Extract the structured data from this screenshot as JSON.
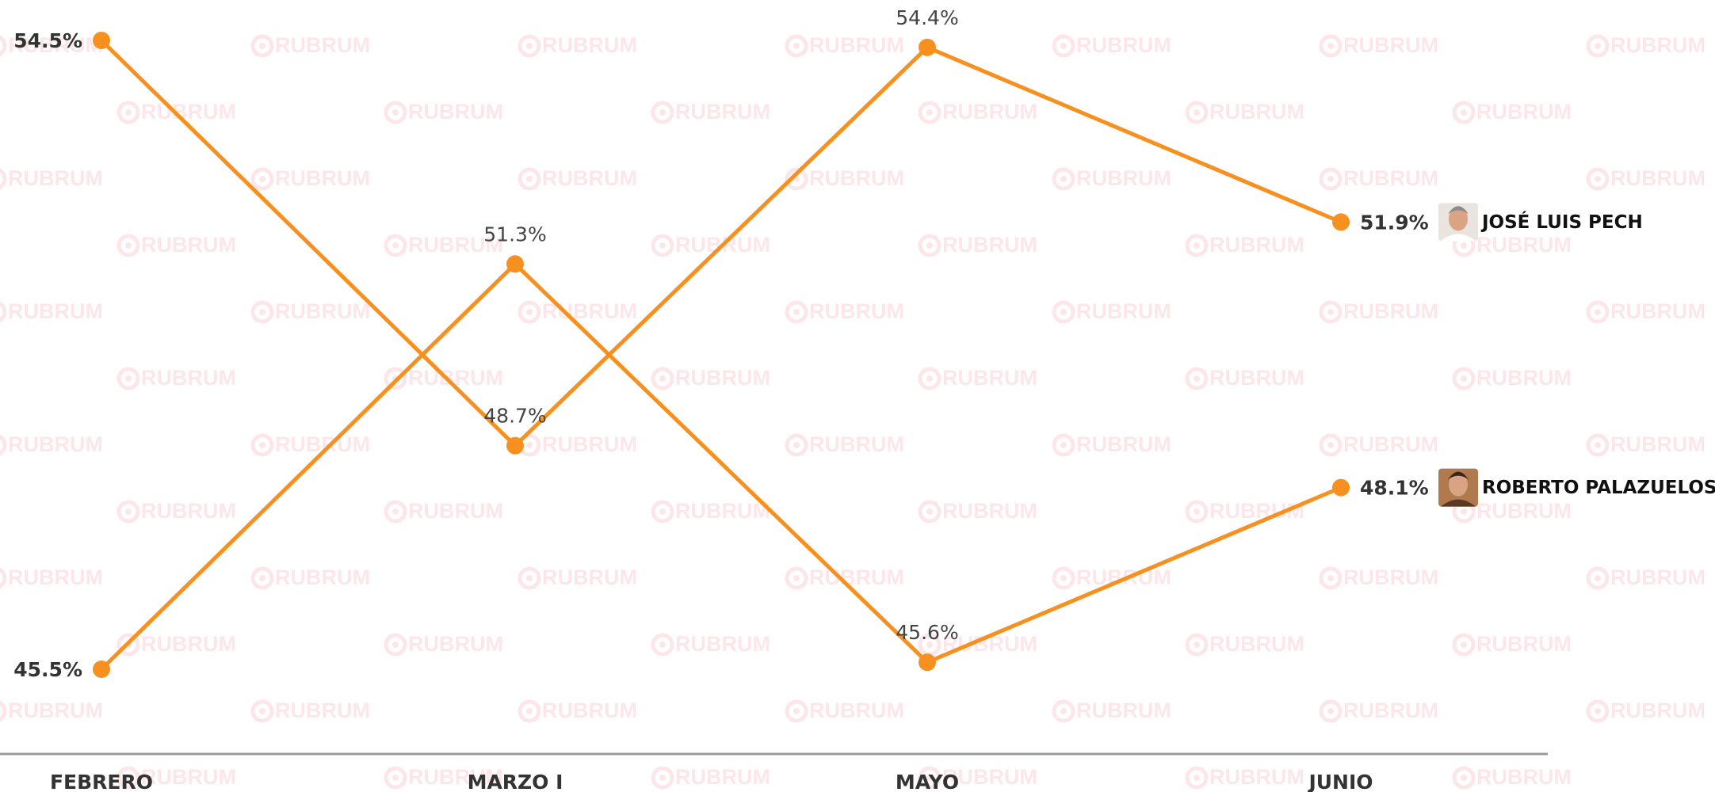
{
  "chart_data": {
    "type": "line",
    "watermark": "RUBRUM",
    "categories": [
      "FEBRERO",
      "MARZO I",
      "MAYO",
      "JUNIO"
    ],
    "series": [
      {
        "name": "JOSÉ LUIS PECH",
        "color": "#f7901e",
        "values": [
          54.5,
          48.7,
          54.4,
          51.9
        ],
        "value_labels": [
          "54.5%",
          "48.7%",
          "54.4%",
          "51.9%"
        ]
      },
      {
        "name": "ROBERTO PALAZUELOS",
        "color": "#f7901e",
        "values": [
          45.5,
          51.3,
          45.6,
          48.1
        ],
        "value_labels": [
          "45.5%",
          "51.3%",
          "45.6%",
          "48.1%"
        ]
      }
    ]
  }
}
